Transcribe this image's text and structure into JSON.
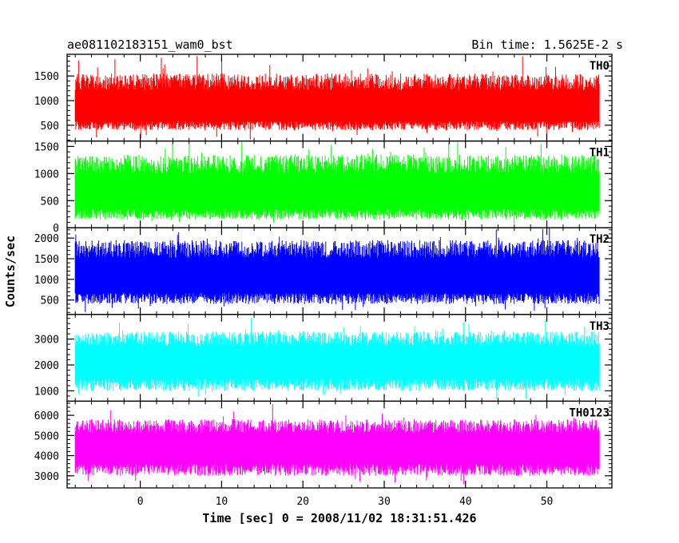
{
  "header": {
    "title": "ae081102183151_wam0_bst",
    "bin_time": "Bin time: 1.5625E-2 s"
  },
  "axes": {
    "xlabel": "Time [sec] 0 = 2008/11/02 18:31:51.426",
    "ylabel": "Counts/sec"
  },
  "chart_data": {
    "type": "line",
    "title": "ae081102183151_wam0_bst",
    "subtitle": "Bin time: 1.5625E-2 s",
    "xlabel": "Time [sec] 0 = 2008/11/02 18:31:51.426",
    "ylabel": "Counts/sec",
    "xlim": [
      -9,
      58
    ],
    "x_range_data": [
      -8,
      56.5
    ],
    "x_ticks": [
      0,
      10,
      20,
      30,
      40,
      50
    ],
    "x_tick_labels": [
      "0",
      "10",
      "20",
      "30",
      "40",
      "50"
    ],
    "grid": false,
    "panels": [
      {
        "name": "TH0",
        "color": "#ff0000",
        "ylim": [
          180,
          1940
        ],
        "y_ticks": [
          500,
          1000,
          1500
        ],
        "y_tick_labels": [
          "500",
          "1000",
          "1500"
        ],
        "mean": 800,
        "typical_low": 400,
        "typical_high": 1550,
        "min": 180,
        "max": 1950
      },
      {
        "name": "TH1",
        "color": "#00ff00",
        "ylim": [
          0,
          1600
        ],
        "y_ticks": [
          0,
          500,
          1000,
          1500
        ],
        "y_tick_labels": [
          "0",
          "500",
          "1000",
          "1500"
        ],
        "mean": 580,
        "typical_low": 150,
        "typical_high": 1350,
        "min": 30,
        "max": 1600
      },
      {
        "name": "TH2",
        "color": "#0000ff",
        "ylim": [
          150,
          2250
        ],
        "y_ticks": [
          500,
          1000,
          1500,
          2000
        ],
        "y_tick_labels": [
          "500",
          "1000",
          "1500",
          "2000"
        ],
        "mean": 1000,
        "typical_low": 400,
        "typical_high": 1950,
        "min": 200,
        "max": 2250
      },
      {
        "name": "TH3",
        "color": "#00ffff",
        "ylim": [
          600,
          3950
        ],
        "y_ticks": [
          1000,
          2000,
          3000
        ],
        "y_tick_labels": [
          "1000",
          "2000",
          "3000"
        ],
        "mean": 2050,
        "typical_low": 1000,
        "typical_high": 3300,
        "min": 650,
        "max": 3950
      },
      {
        "name": "TH0123",
        "color": "#ff00ff",
        "ylim": [
          2400,
          6700
        ],
        "y_ticks": [
          3000,
          4000,
          5000,
          6000
        ],
        "y_tick_labels": [
          "3000",
          "4000",
          "5000",
          "6000"
        ],
        "mean": 4300,
        "typical_low": 3000,
        "typical_high": 5800,
        "min": 2500,
        "max": 6600
      }
    ]
  }
}
